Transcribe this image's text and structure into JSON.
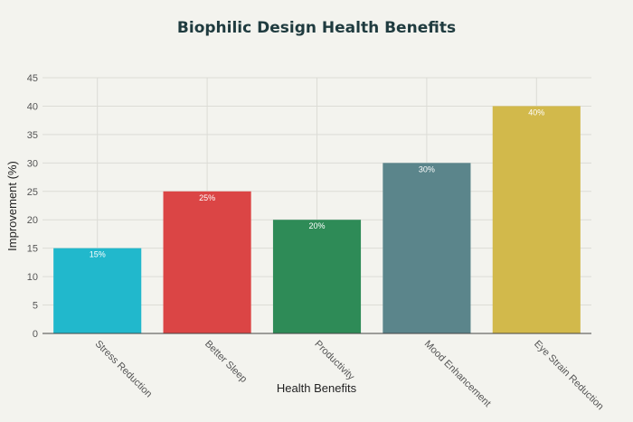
{
  "chart_data": {
    "type": "bar",
    "title": "Biophilic Design Health Benefits",
    "xlabel": "Health Benefits",
    "ylabel": "Improvement (%)",
    "categories": [
      "Stress Reduction",
      "Better Sleep",
      "Productivity",
      "Mood Enhancement",
      "Eye Strain Reduction"
    ],
    "values": [
      15,
      25,
      20,
      30,
      40
    ],
    "data_labels": [
      "15%",
      "25%",
      "20%",
      "30%",
      "40%"
    ],
    "colors": [
      "#21b8cc",
      "#db4545",
      "#2e8b57",
      "#5b858b",
      "#d2b94b"
    ],
    "ylim": [
      0,
      45
    ],
    "yticks": [
      0,
      5,
      10,
      15,
      20,
      25,
      30,
      35,
      40,
      45
    ],
    "grid": true,
    "legend": "none"
  }
}
